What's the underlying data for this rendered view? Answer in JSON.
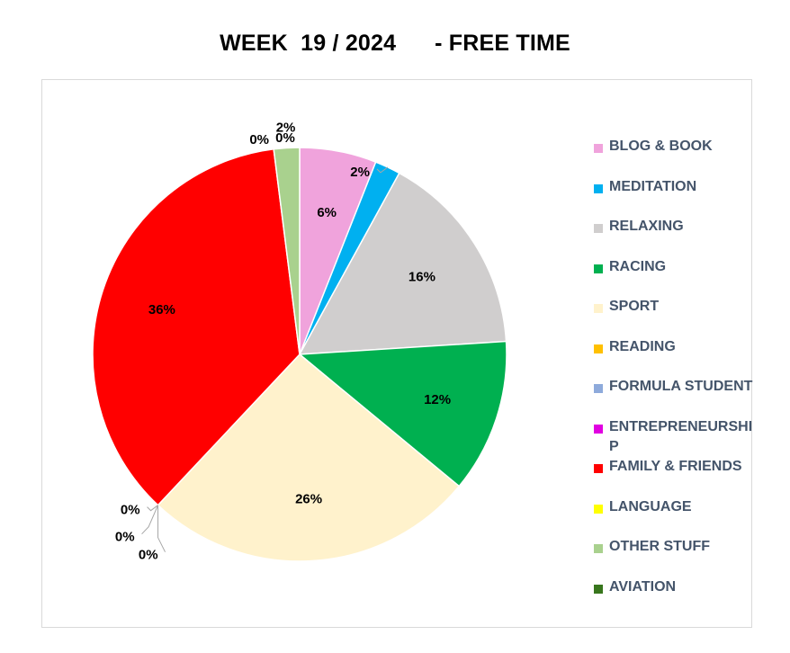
{
  "chart_data": {
    "type": "pie",
    "title": "WEEK  19 / 2024      - FREE TIME",
    "legend_position": "right",
    "slices": [
      {
        "label": "BLOG & BOOK",
        "value": 6,
        "display": "6%",
        "color": "#f0a3dc"
      },
      {
        "label": "MEDITATION",
        "value": 2,
        "display": "2%",
        "color": "#00b0f0"
      },
      {
        "label": "RELAXING",
        "value": 16,
        "display": "16%",
        "color": "#d0cece"
      },
      {
        "label": "RACING",
        "value": 12,
        "display": "12%",
        "color": "#00b050"
      },
      {
        "label": "SPORT",
        "value": 26,
        "display": "26%",
        "color": "#fff2cc"
      },
      {
        "label": "READING",
        "value": 0,
        "display": "0%",
        "color": "#ffc000"
      },
      {
        "label": "FORMULA STUDENT",
        "value": 0,
        "display": "0%",
        "color": "#8eaadb"
      },
      {
        "label": "ENTREPRENEURSHIP",
        "value": 0,
        "display": "0%",
        "color": "#e100e1"
      },
      {
        "label": "FAMILY & FRIENDS",
        "value": 36,
        "display": "36%",
        "color": "#ff0000"
      },
      {
        "label": "LANGUAGE",
        "value": 0,
        "display": "0%",
        "color": "#ffff00"
      },
      {
        "label": "OTHER STUFF",
        "value": 2,
        "display": "2%",
        "color": "#a9d18e"
      },
      {
        "label": "AVIATION",
        "value": 0,
        "display": "0%",
        "color": "#38761d"
      }
    ]
  }
}
